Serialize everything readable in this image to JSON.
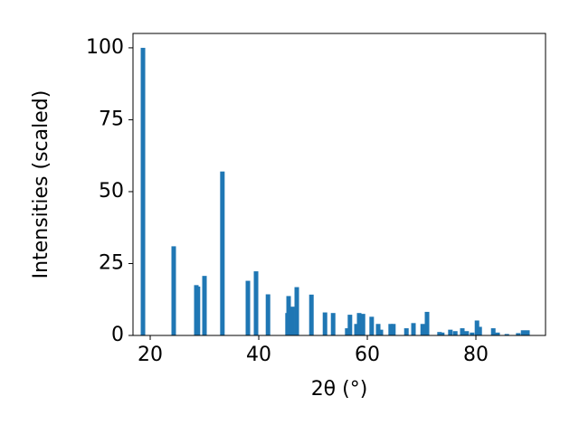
{
  "chart_data": {
    "type": "bar",
    "xlabel": "2θ (°)",
    "ylabel": "Intensities (scaled)",
    "x": [
      18.67,
      24.33,
      28.5,
      28.8,
      30,
      33.3,
      38,
      39.5,
      41.7,
      45.3,
      45.5,
      46.2,
      47,
      49.7,
      52.2,
      53.7,
      56.3,
      56.8,
      58,
      58.5,
      59.2,
      60.8,
      62,
      62.5,
      64.3,
      64.8,
      67.2,
      68.5,
      70.2,
      71,
      73.3,
      73.8,
      75.3,
      76.2,
      77.5,
      78.3,
      79.3,
      80.2,
      80.7,
      83.2,
      84,
      85.7,
      87.8,
      88.7,
      89.5
    ],
    "values": [
      100,
      31,
      17.5,
      17,
      20.7,
      57,
      19,
      22.3,
      14.3,
      7.8,
      13.7,
      10,
      16.8,
      14.2,
      8,
      7.8,
      2.5,
      7.2,
      4,
      7.8,
      7.5,
      6.5,
      4,
      2,
      4,
      4,
      2.5,
      4.3,
      4,
      8.2,
      1.2,
      1,
      2,
      1.5,
      2.5,
      1.5,
      1,
      5.2,
      3,
      2.5,
      1,
      0.5,
      0.8,
      1.8,
      1.8
    ],
    "color": "#1f77b4",
    "xlim": [
      16.83,
      92.83
    ],
    "xticks": [
      20,
      40,
      60,
      80
    ],
    "ylim": [
      0,
      105
    ],
    "yticks": [
      0,
      25,
      50,
      75,
      100
    ]
  }
}
